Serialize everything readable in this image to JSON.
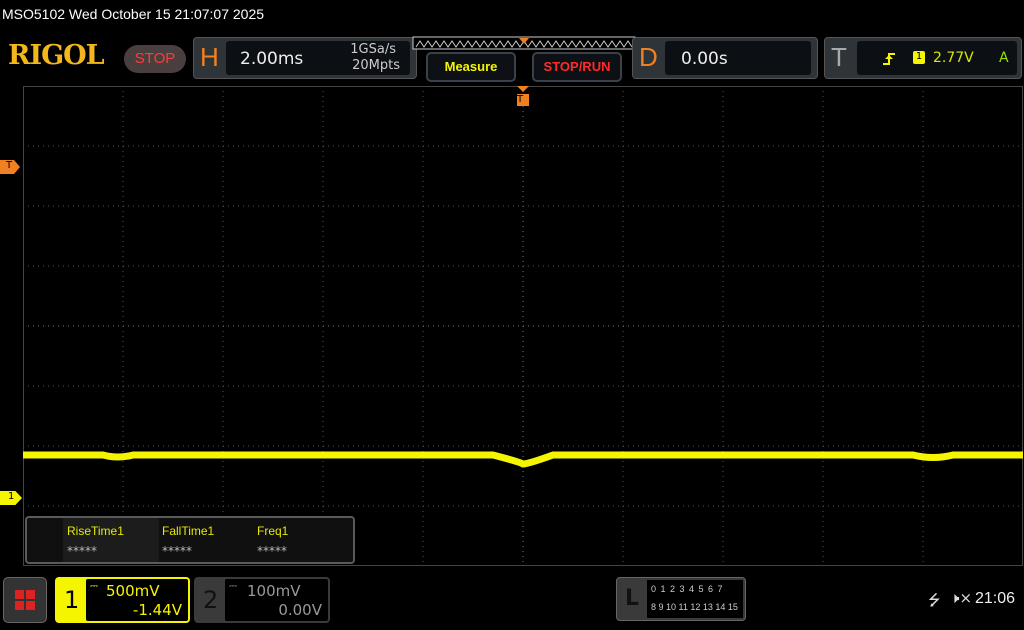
{
  "header": {
    "title": "MSO5102  Wed October 15 21:07:07 2025",
    "logo": "RIGOL",
    "run_state": "STOP"
  },
  "horizontal": {
    "label": "H",
    "timebase": "2.00ms",
    "sample_rate": "1GSa/s",
    "memory_depth": "20Mpts"
  },
  "buttons": {
    "measure": "Measure",
    "stop_run": "STOP/RUN"
  },
  "delay": {
    "label": "D",
    "value": "0.00s"
  },
  "trigger": {
    "label": "T",
    "source": "1",
    "level": "2.77V",
    "mode": "A",
    "edge": "rising-edge-icon"
  },
  "markers": {
    "trigger_level": "T",
    "channel1": "1",
    "trigger_position": "T"
  },
  "measurements": [
    {
      "name": "RiseTime1",
      "value": "*****"
    },
    {
      "name": "FallTime1",
      "value": "*****"
    },
    {
      "name": "Freq1",
      "value": "*****"
    }
  ],
  "channels": [
    {
      "number": "1",
      "scale": "500mV",
      "offset": "-1.44V",
      "active": true,
      "color": "#f5f500"
    },
    {
      "number": "2",
      "scale": "100mV",
      "offset": "0.00V",
      "active": false,
      "color": "#888888"
    }
  ],
  "logic": {
    "label": "L",
    "row1": "0 1 2 3  4 5 6 7",
    "row2": "8 9 10 11 12 13 14 15"
  },
  "status": {
    "time": "21:06",
    "icons": [
      "usb-icon",
      "speaker-muted-icon"
    ]
  },
  "colors": {
    "trace": "#f5f500",
    "accent": "#f08020",
    "stop": "#ff3b3b"
  }
}
